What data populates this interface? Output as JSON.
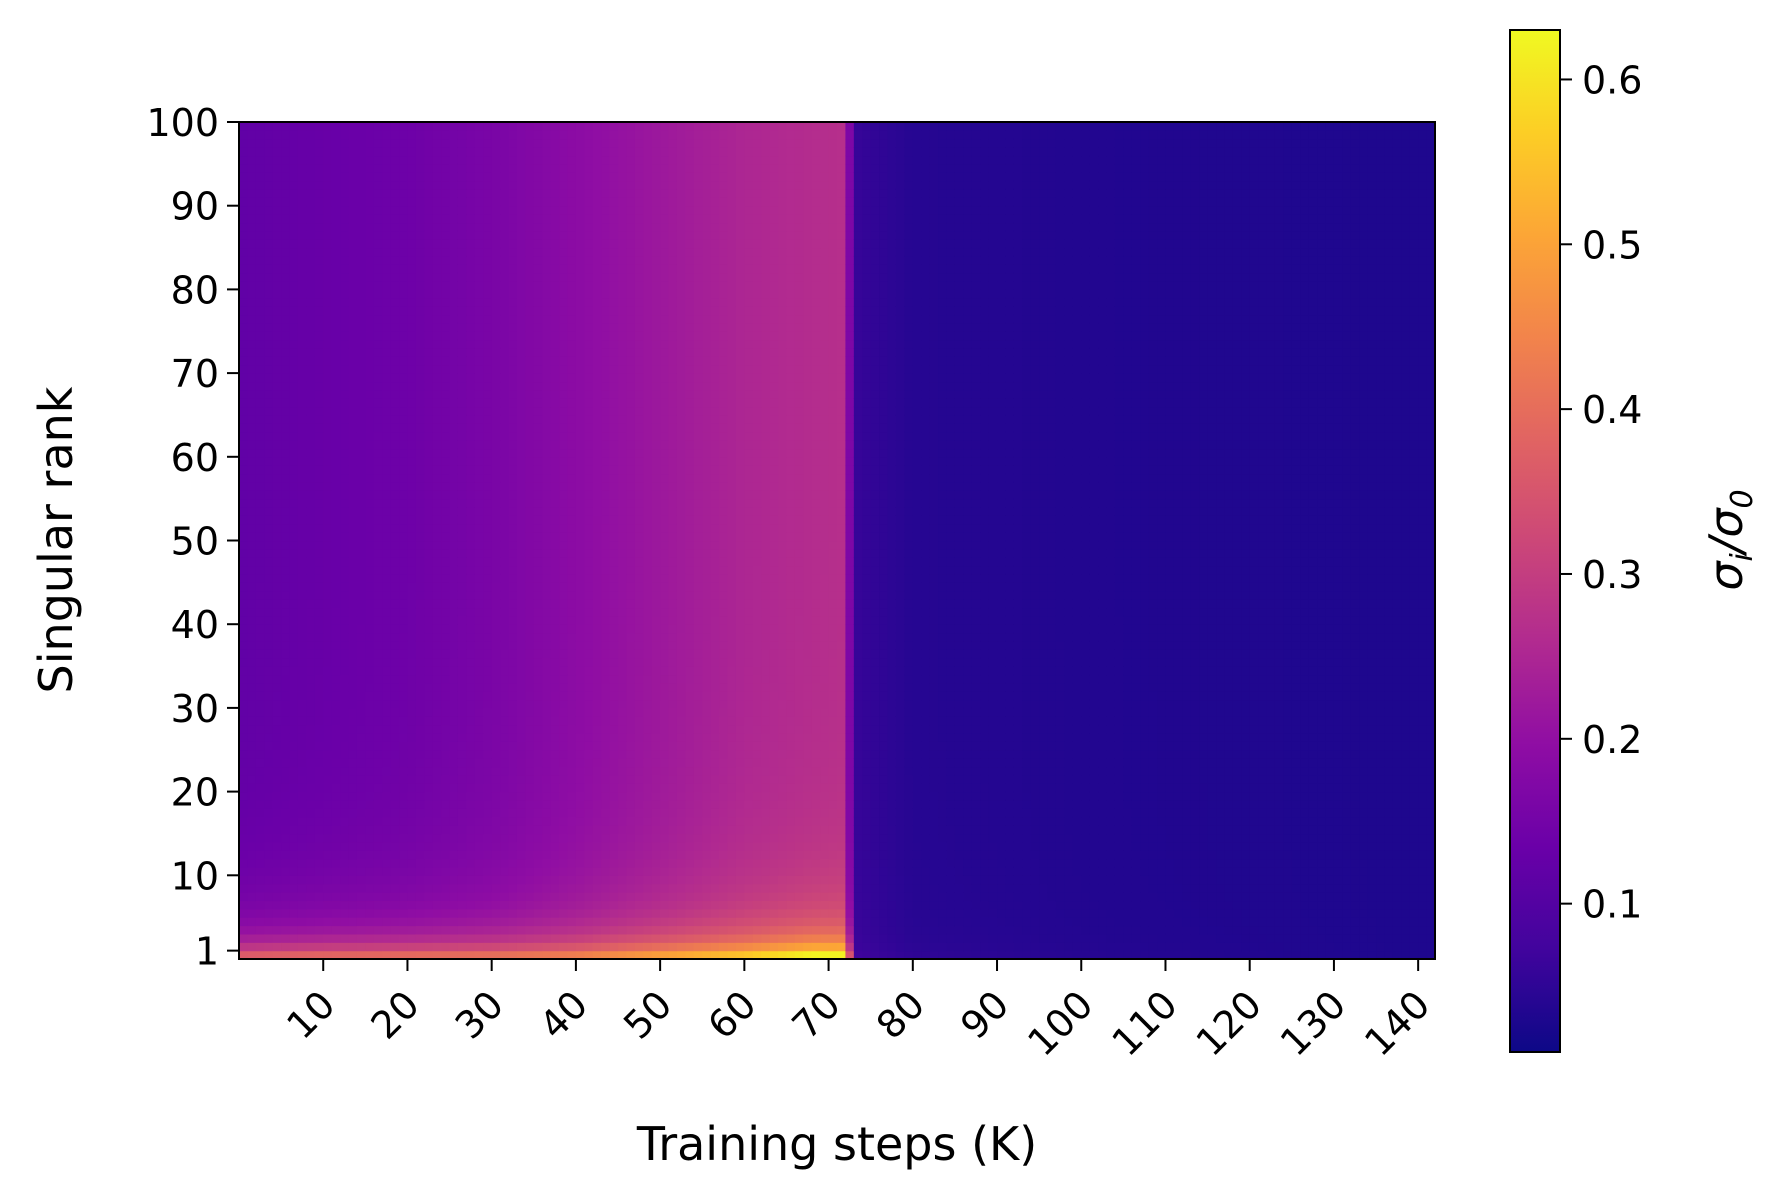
{
  "chart_data": {
    "type": "heatmap",
    "xlabel": "Training steps (K)",
    "ylabel": "Singular rank",
    "colorbar_label": "σ_i/σ_0",
    "colormap": "plasma",
    "x_range": [
      0,
      142
    ],
    "y_range": [
      0,
      100
    ],
    "x_ticks": [
      10,
      20,
      30,
      40,
      50,
      60,
      70,
      80,
      90,
      100,
      110,
      120,
      130,
      140
    ],
    "x_tick_labels": [
      "10",
      "20",
      "30",
      "40",
      "50",
      "60",
      "70",
      "80",
      "90",
      "100",
      "110",
      "120",
      "130",
      "140"
    ],
    "y_ticks": [
      1,
      10,
      20,
      30,
      40,
      50,
      60,
      70,
      80,
      90,
      100
    ],
    "y_tick_labels": [
      "1",
      "10",
      "20",
      "30",
      "40",
      "50",
      "60",
      "70",
      "80",
      "90",
      "100"
    ],
    "colorbar_range": [
      0.01,
      0.63
    ],
    "colorbar_ticks": [
      0.1,
      0.2,
      0.3,
      0.4,
      0.5,
      0.6
    ],
    "colorbar_tick_labels": [
      "0.1",
      "0.2",
      "0.3",
      "0.4",
      "0.5",
      "0.6"
    ],
    "value_profile": {
      "rank_1_vs_step": {
        "steps": [
          0,
          10,
          20,
          30,
          40,
          50,
          60,
          68,
          72,
          73,
          80,
          100,
          140
        ],
        "values": [
          0.36,
          0.38,
          0.39,
          0.4,
          0.43,
          0.49,
          0.55,
          0.62,
          0.62,
          0.07,
          0.05,
          0.04,
          0.03
        ]
      },
      "rank_100_vs_step": {
        "steps": [
          0,
          10,
          20,
          30,
          40,
          50,
          60,
          72,
          73,
          80,
          100,
          140
        ],
        "values": [
          0.12,
          0.13,
          0.14,
          0.16,
          0.19,
          0.22,
          0.25,
          0.27,
          0.06,
          0.04,
          0.035,
          0.03
        ]
      }
    }
  }
}
